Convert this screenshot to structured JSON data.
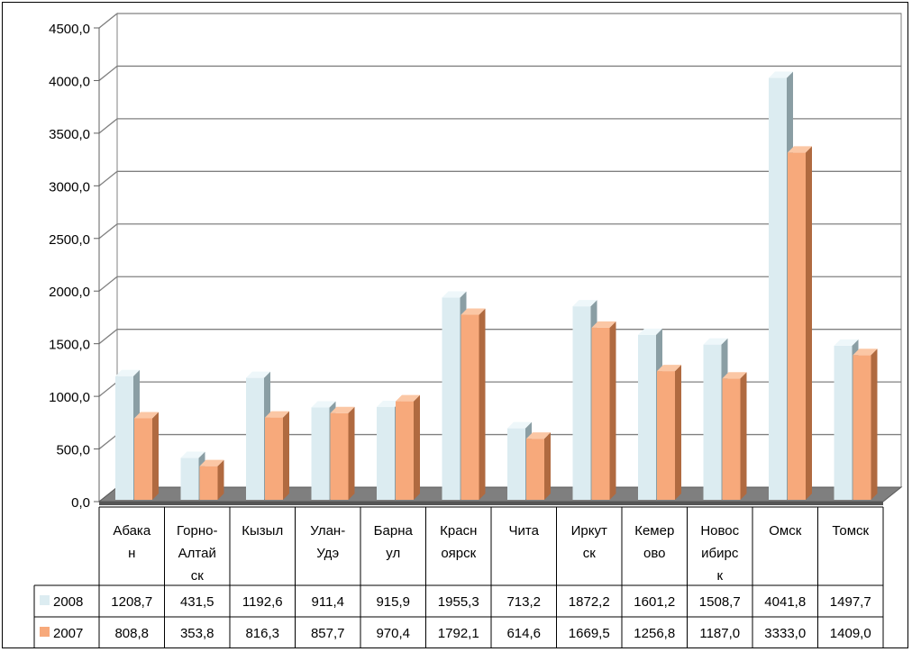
{
  "chart_data": {
    "type": "bar",
    "categories": [
      [
        "Абака",
        "н"
      ],
      [
        "Горно-",
        "Алтай",
        "ск"
      ],
      [
        "Кызыл"
      ],
      [
        "Улан-",
        "Удэ"
      ],
      [
        "Барна",
        "ул"
      ],
      [
        "Красн",
        "оярск"
      ],
      [
        "Чита"
      ],
      [
        "Иркут",
        "ск"
      ],
      [
        "Кемер",
        "ово"
      ],
      [
        "Новос",
        "ибирс",
        "к"
      ],
      [
        "Омск"
      ],
      [
        "Томск"
      ]
    ],
    "series": [
      {
        "name": "2008",
        "values": [
          1208.7,
          431.5,
          1192.6,
          911.4,
          915.9,
          1955.3,
          713.2,
          1872.2,
          1601.2,
          1508.7,
          4041.8,
          1497.7
        ],
        "labels": [
          "1208,7",
          "431,5",
          "1192,6",
          "911,4",
          "915,9",
          "1955,3",
          "713,2",
          "1872,2",
          "1601,2",
          "1508,7",
          "4041,8",
          "1497,7"
        ],
        "color": "#dcecf1",
        "side_color": "#8a9ea4",
        "top_color": "#eef7fa"
      },
      {
        "name": "2007",
        "values": [
          808.8,
          353.8,
          816.3,
          857.7,
          970.4,
          1792.1,
          614.6,
          1669.5,
          1256.8,
          1187.0,
          3333.0,
          1409.0
        ],
        "labels": [
          "808,8",
          "353,8",
          "816,3",
          "857,7",
          "970,4",
          "1792,1",
          "614,6",
          "1669,5",
          "1256,8",
          "1187,0",
          "3333,0",
          "1409,0"
        ],
        "color": "#f7a97b",
        "side_color": "#b06a40",
        "top_color": "#fbc7a5"
      }
    ],
    "y_ticks": [
      0,
      500,
      1000,
      1500,
      2000,
      2500,
      3000,
      3500,
      4000,
      4500
    ],
    "y_tick_labels": [
      "0,0",
      "500,0",
      "1000,0",
      "1500,0",
      "2000,0",
      "2500,0",
      "3000,0",
      "3500,0",
      "4000,0",
      "4500,0"
    ],
    "ylim": [
      0,
      4500
    ],
    "grid": true,
    "legend": "data-table"
  }
}
